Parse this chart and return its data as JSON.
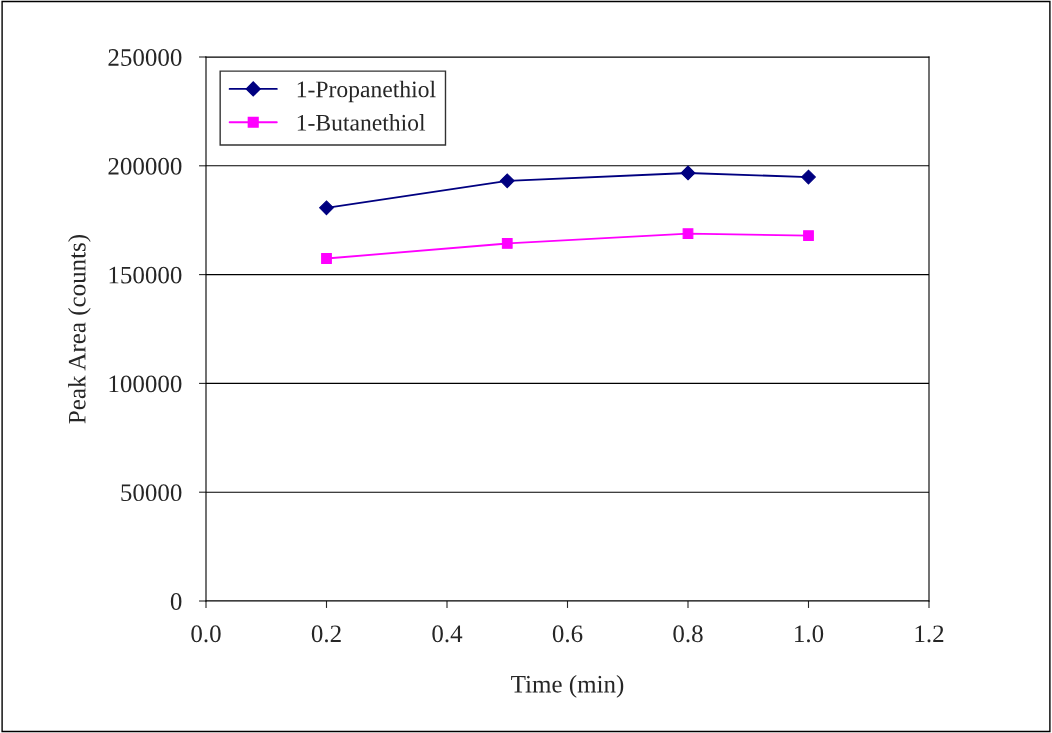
{
  "chart_data": {
    "type": "line",
    "xlabel": "Time (min)",
    "ylabel": "Peak Area (counts)",
    "x": [
      0.2,
      0.5,
      0.8,
      1.0
    ],
    "series": [
      {
        "name": "1-Propanethiol",
        "color": "#000080",
        "marker": "diamond",
        "values": [
          180700,
          193100,
          196700,
          194800
        ]
      },
      {
        "name": "1-Butanethiol",
        "color": "#ff00ff",
        "marker": "square",
        "values": [
          157400,
          164300,
          168800,
          167900
        ]
      }
    ],
    "xlim": [
      0.0,
      1.2
    ],
    "xticks": [
      {
        "value": 0.0,
        "label": "0.0"
      },
      {
        "value": 0.2,
        "label": "0.2"
      },
      {
        "value": 0.4,
        "label": "0.4"
      },
      {
        "value": 0.6,
        "label": "0.6"
      },
      {
        "value": 0.8,
        "label": "0.8"
      },
      {
        "value": 1.0,
        "label": "1.0"
      },
      {
        "value": 1.2,
        "label": "1.2"
      }
    ],
    "ylim": [
      0,
      250000
    ],
    "yticks": [
      0,
      50000,
      100000,
      150000,
      200000,
      250000
    ],
    "grid": "y",
    "legend": "top left"
  }
}
